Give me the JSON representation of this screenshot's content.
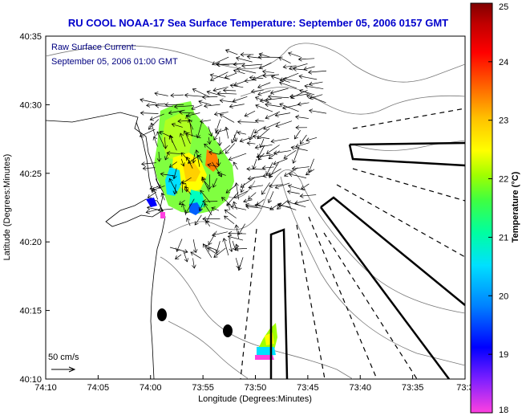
{
  "title": "RU COOL  NOAA-17  Sea Surface Temperature:  September 05, 2006 0157 GMT",
  "annotation": {
    "line1": "Raw Surface Current:",
    "line2": "September 05, 2006 01:00 GMT"
  },
  "scale_label": "50 cm/s",
  "x_axis": {
    "label": "Longitude (Degrees:Minutes)",
    "ticks": [
      "74:10",
      "74:05",
      "74:00",
      "73:55",
      "73:50",
      "73:45",
      "73:40",
      "73:35",
      "73:3"
    ]
  },
  "y_axis": {
    "label": "Latitude (Degrees:Minutes)",
    "ticks": [
      "40:35",
      "40:30",
      "40:25",
      "40:20",
      "40:15",
      "40:10"
    ]
  },
  "colorbar": {
    "label": "Temperature (°C)",
    "ticks": [
      "25",
      "24",
      "23",
      "22",
      "21",
      "20",
      "19",
      "18"
    ],
    "min": 18,
    "max": 25,
    "colors": [
      "#ff40e0",
      "#8020ff",
      "#0000ff",
      "#0080ff",
      "#00e0ff",
      "#00ffa0",
      "#40ff40",
      "#a0ff00",
      "#ffff00",
      "#ffc000",
      "#ff6000",
      "#ff0000",
      "#c00000",
      "#800000"
    ]
  },
  "chart_data": {
    "type": "map",
    "title": "RU COOL  NOAA-17  Sea Surface Temperature:  September 05, 2006 0157 GMT",
    "xlabel": "Longitude (Degrees:Minutes)",
    "ylabel": "Latitude (Degrees:Minutes)",
    "xlim_deg": [
      -74.1667,
      -73.5
    ],
    "ylim_deg": [
      40.1667,
      40.5833
    ],
    "colorbar_range_C": [
      18,
      25
    ]
  }
}
